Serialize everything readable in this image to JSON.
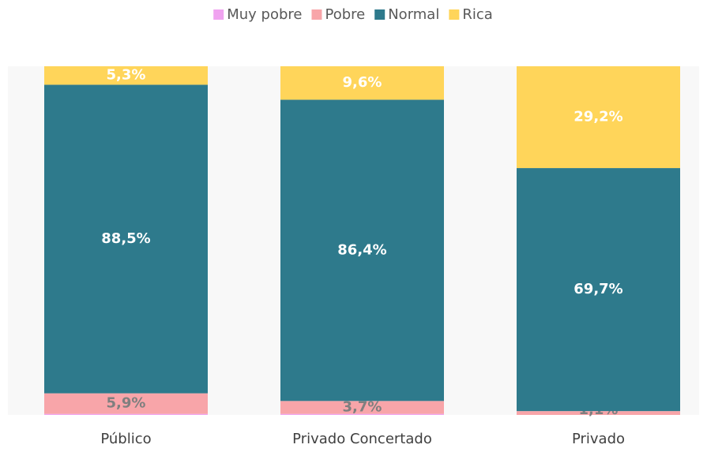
{
  "chart_data": {
    "type": "stacked_bar",
    "categories": [
      "Público",
      "Privado Concertado",
      "Privado"
    ],
    "ylim": [
      0,
      100
    ],
    "series": [
      {
        "name": "Muy pobre",
        "color": "#f0a3f0",
        "values": [
          0.3,
          0.3,
          0.0
        ]
      },
      {
        "name": "Pobre",
        "color": "#f8a5a9",
        "label_color": "#7f7f7f",
        "values": [
          5.9,
          3.7,
          1.1
        ],
        "value_labels": [
          "5,9%",
          "3,7%",
          "1,1%"
        ]
      },
      {
        "name": "Normal",
        "color": "#2e7a8c",
        "label_color": "#ffffff",
        "values": [
          88.5,
          86.4,
          69.7
        ],
        "value_labels": [
          "88,5%",
          "86,4%",
          "69,7%"
        ]
      },
      {
        "name": "Rica",
        "color": "#ffd55a",
        "label_color": "#ffffff",
        "values": [
          5.3,
          9.6,
          29.2
        ],
        "value_labels": [
          "5,3%",
          "9,6%",
          "29,2%"
        ]
      }
    ],
    "legend": "top"
  }
}
